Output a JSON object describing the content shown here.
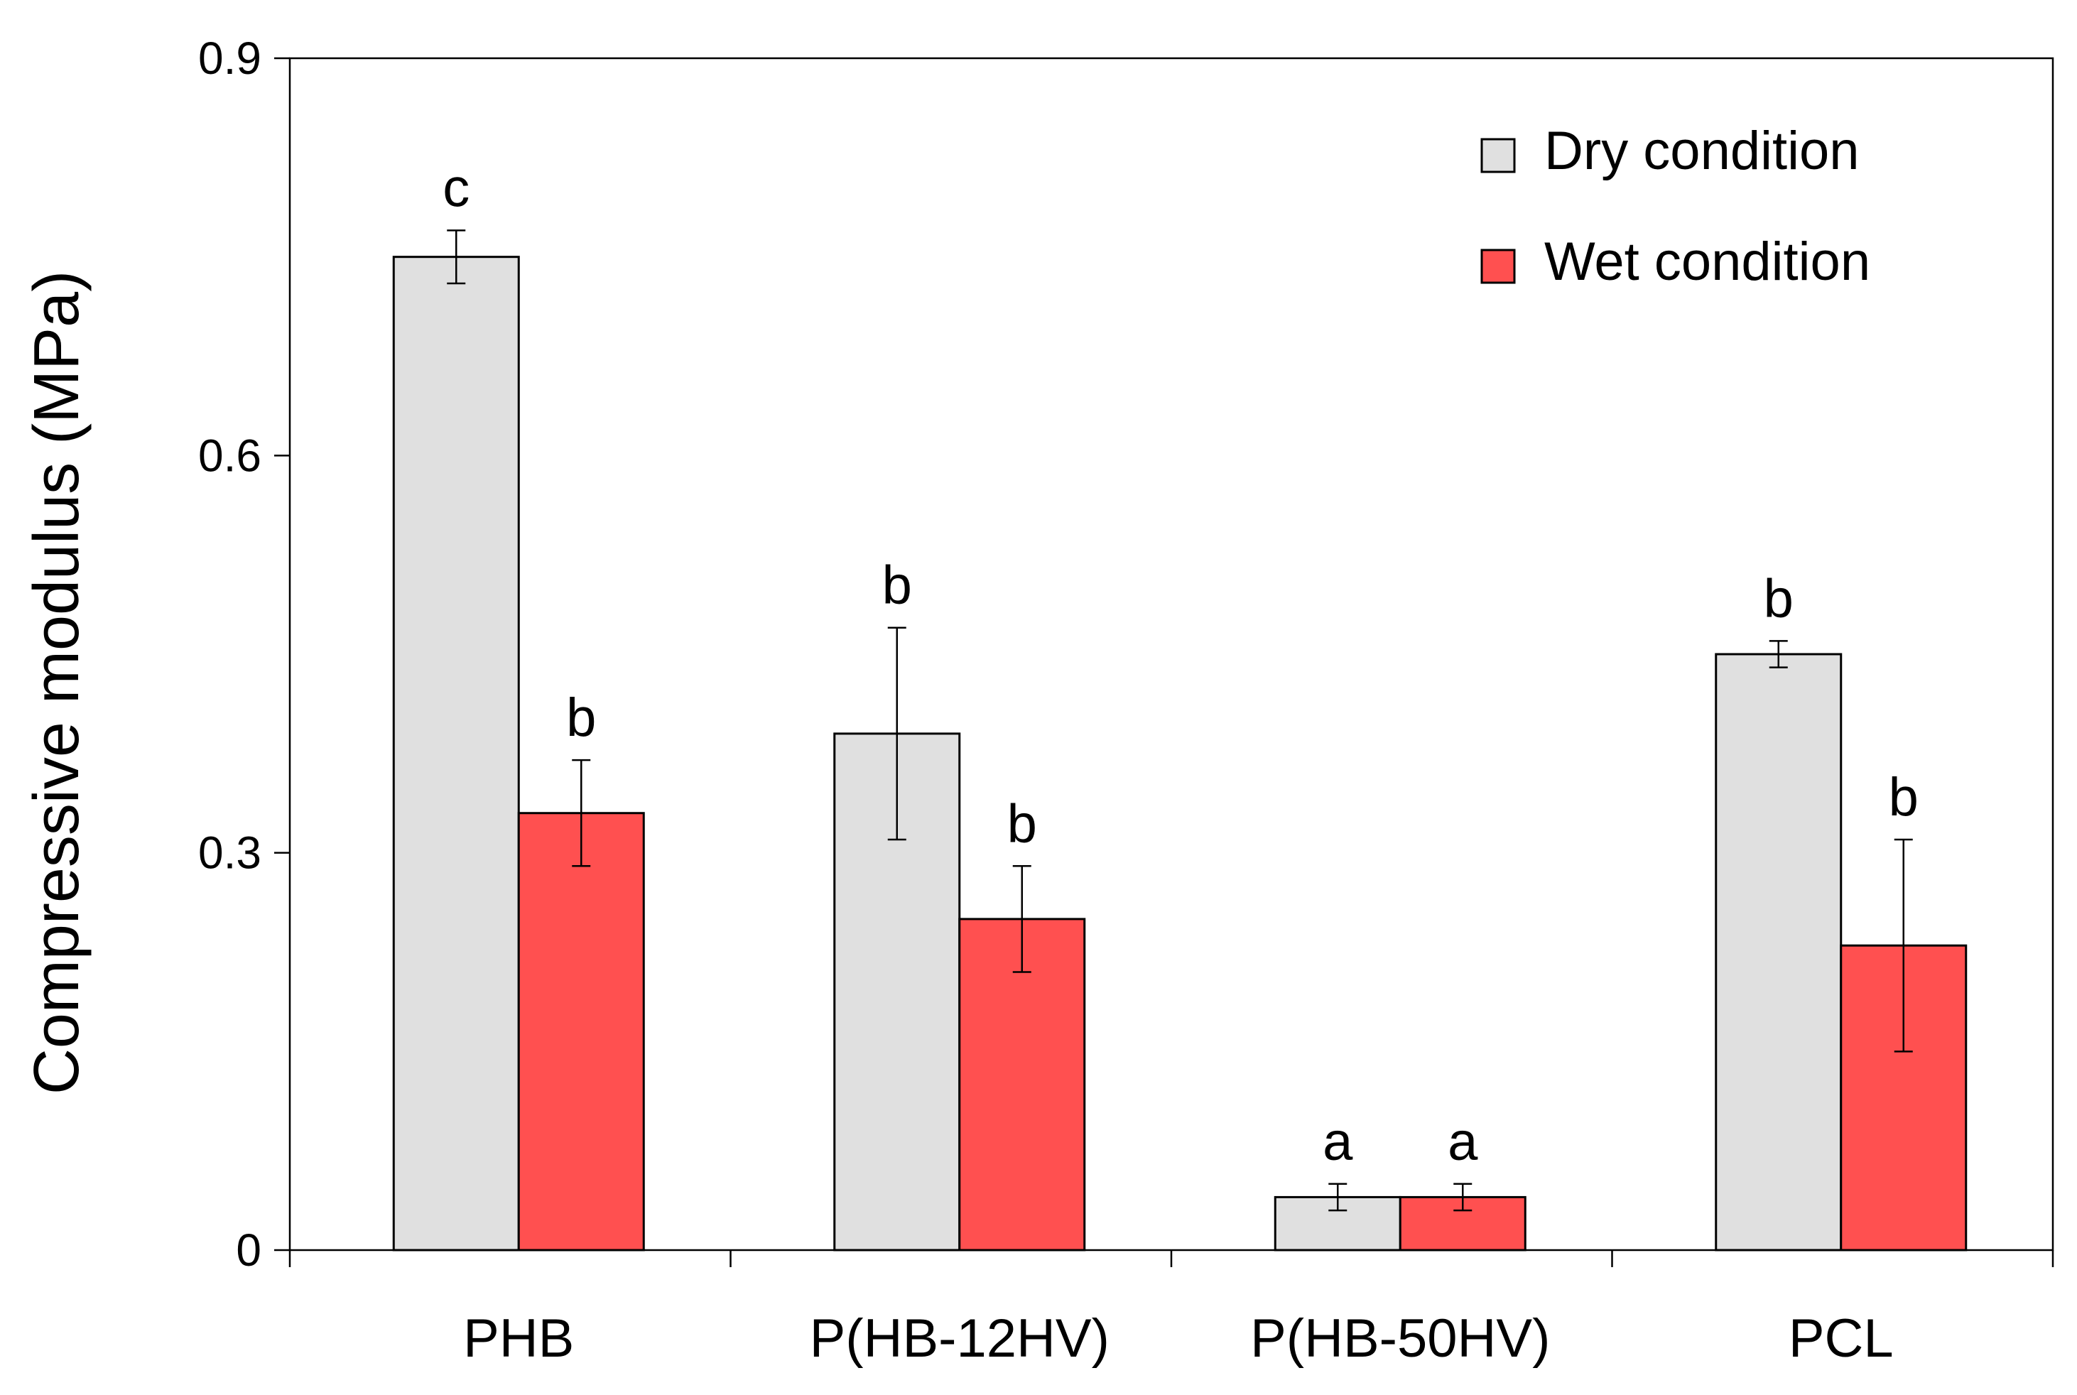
{
  "chart_data": {
    "type": "bar",
    "title": "",
    "xlabel": "",
    "ylabel": "Compressive modulus (MPa)",
    "ylim": [
      0,
      0.9
    ],
    "yticks": [
      0,
      0.3,
      0.6,
      0.9
    ],
    "ytick_labels": [
      "0",
      "0.3",
      "0.6",
      "0.9"
    ],
    "categories": [
      "PHB",
      "P(HB-12HV)",
      "P(HB-50HV)",
      "PCL"
    ],
    "legend_position": "top-right",
    "grid": false,
    "colors": {
      "dry": "#e0e0e0",
      "wet": "#ff5050",
      "stroke": "#000000"
    },
    "series": [
      {
        "name": "Dry condition",
        "values": [
          0.75,
          0.39,
          0.04,
          0.45
        ],
        "errors": [
          0.02,
          0.08,
          0.01,
          0.01
        ],
        "significance": [
          "c",
          "b",
          "a",
          "b"
        ]
      },
      {
        "name": "Wet condition",
        "values": [
          0.33,
          0.25,
          0.04,
          0.23
        ],
        "errors": [
          0.04,
          0.04,
          0.01,
          0.08
        ],
        "significance": [
          "b",
          "b",
          "a",
          "b"
        ]
      }
    ]
  }
}
